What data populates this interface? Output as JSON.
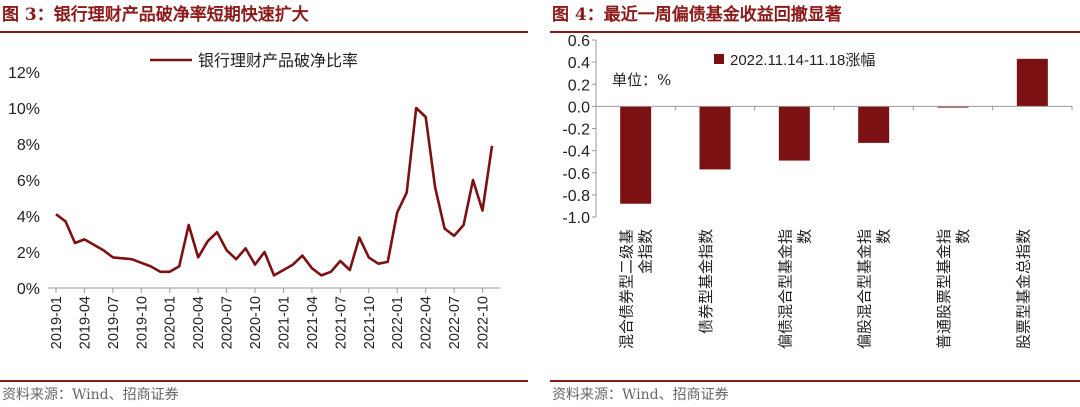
{
  "left": {
    "title": "图 3：银行理财产品破净率短期快速扩大",
    "source": "资料来源：Wind、招商证券",
    "chart_data": {
      "type": "line",
      "series": [
        {
          "name": "银行理财产品破净比率",
          "color": "#7b1113",
          "x": [
            "2019-01",
            "2019-02",
            "2019-03",
            "2019-04",
            "2019-05",
            "2019-06",
            "2019-07",
            "2019-08",
            "2019-09",
            "2019-10",
            "2019-11",
            "2019-12",
            "2020-01",
            "2020-02",
            "2020-03",
            "2020-04",
            "2020-05",
            "2020-06",
            "2020-07",
            "2020-08",
            "2020-09",
            "2020-10",
            "2020-11",
            "2020-12",
            "2021-01",
            "2021-02",
            "2021-03",
            "2021-04",
            "2021-05",
            "2021-06",
            "2021-07",
            "2021-08",
            "2021-09",
            "2021-10",
            "2021-11",
            "2021-12",
            "2022-01",
            "2022-02",
            "2022-03",
            "2022-04",
            "2022-05",
            "2022-06",
            "2022-07",
            "2022-08",
            "2022-09",
            "2022-10",
            "2022-11"
          ],
          "values": [
            4.1,
            3.7,
            2.5,
            2.7,
            2.4,
            2.1,
            1.7,
            1.65,
            1.6,
            1.4,
            1.2,
            0.9,
            0.9,
            1.2,
            3.5,
            1.7,
            2.6,
            3.1,
            2.1,
            1.6,
            2.2,
            1.3,
            2.0,
            0.7,
            1.0,
            1.3,
            1.8,
            1.1,
            0.7,
            0.9,
            1.5,
            1.0,
            2.8,
            1.7,
            1.35,
            1.45,
            4.2,
            5.3,
            10.0,
            9.5,
            5.6,
            3.3,
            2.9,
            3.5,
            6.0,
            4.3,
            7.9
          ]
        }
      ],
      "ylim": [
        0,
        13
      ],
      "yticks": [
        "0%",
        "2%",
        "4%",
        "6%",
        "8%",
        "10%",
        "12%"
      ],
      "xticks": [
        "2019-01",
        "2019-04",
        "2019-07",
        "2019-10",
        "2020-01",
        "2020-04",
        "2020-07",
        "2020-10",
        "2021-01",
        "2021-04",
        "2021-07",
        "2021-10",
        "2022-01",
        "2022-04",
        "2022-07",
        "2022-10"
      ],
      "legend": "top-center",
      "grid": false
    }
  },
  "right": {
    "title": "图 4：最近一周偏债基金收益回撤显著",
    "source": "资料来源：Wind、招商证券",
    "chart_data": {
      "type": "bar",
      "categories": [
        "混合债券型二级基金指数",
        "债券型基金指数",
        "偏债混合型基金指数",
        "偏股混合型基金指数",
        "普通股票型基金指数",
        "股票型基金总指数"
      ],
      "category_lines": [
        [
          "混合债券型二级基",
          "金指数"
        ],
        [
          "债券型基金指数"
        ],
        [
          "偏债混合型基金指",
          "数"
        ],
        [
          "偏股混合型基金指",
          "数"
        ],
        [
          "普通股票型基金指",
          "数"
        ],
        [
          "股票型基金总指数"
        ]
      ],
      "series": [
        {
          "name": "2022.11.14-11.18涨幅",
          "color": "#7b1113",
          "values": [
            -0.88,
            -0.57,
            -0.49,
            -0.33,
            -0.01,
            0.43
          ]
        }
      ],
      "unit_note": "单位：%",
      "ylim": [
        -1.0,
        0.6
      ],
      "yticks": [
        "0.6",
        "0.4",
        "0.2",
        "0.0",
        "-0.2",
        "-0.4",
        "-0.6",
        "-0.8",
        "-1.0"
      ],
      "legend": "top-left",
      "grid": false
    }
  }
}
